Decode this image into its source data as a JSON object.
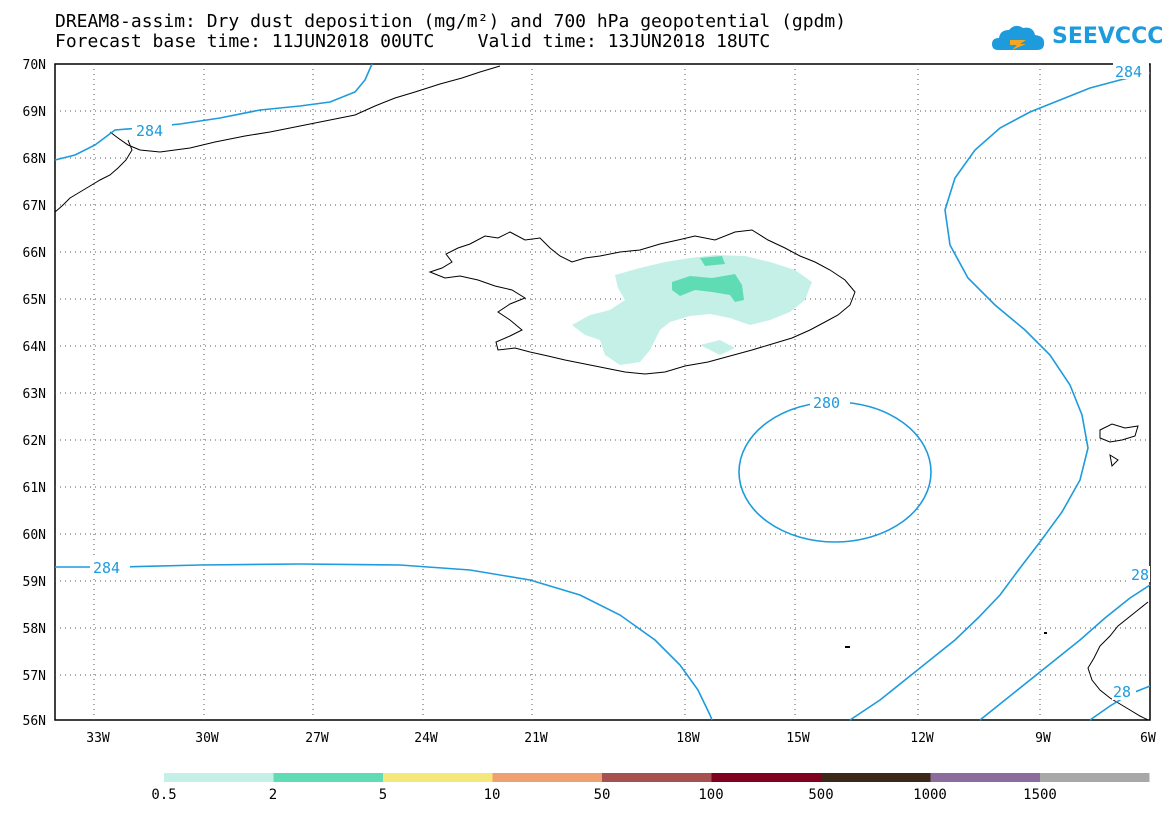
{
  "header": {
    "title_line1": "DREAM8-assim: Dry dust deposition (mg/m²) and 700 hPa geopotential (gpdm)",
    "title_line2": "Forecast base time: 11JUN2018 00UTC    Valid time: 13JUN2018 18UTC"
  },
  "logo": {
    "text": "SEEVCCC",
    "color": "#1e9bdc"
  },
  "map": {
    "lat_labels": [
      "70N",
      "69N",
      "68N",
      "67N",
      "66N",
      "65N",
      "64N",
      "63N",
      "62N",
      "61N",
      "60N",
      "59N",
      "58N",
      "57N",
      "56N"
    ],
    "lon_labels": [
      "33W",
      "30W",
      "27W",
      "24W",
      "21W",
      "18W",
      "15W",
      "12W",
      "9W",
      "6W"
    ],
    "contour_color": "#1e9bdc",
    "contour_labels": [
      "284",
      "284",
      "280",
      "284",
      "28",
      "28"
    ]
  },
  "legend": {
    "labels": [
      "0.5",
      "2",
      "5",
      "10",
      "50",
      "100",
      "500",
      "1000",
      "1500"
    ],
    "colors": [
      "#c4f0e8",
      "#5fdcb4",
      "#f5e87a",
      "#f0a070",
      "#a85050",
      "#800020",
      "#3c2818",
      "#8c6c9c",
      "#a8a8a8"
    ]
  }
}
